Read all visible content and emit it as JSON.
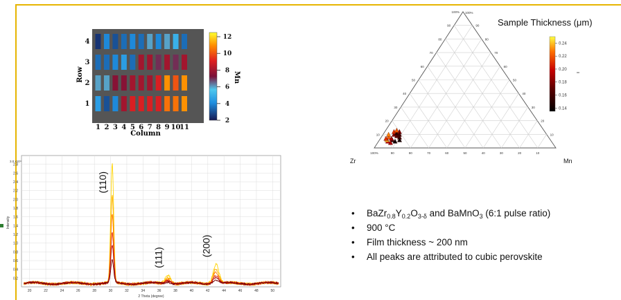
{
  "colors": {
    "frame": "#e6b400",
    "marker": "#2e7d32",
    "heatmap_bg": "#555555",
    "xrd_red": "#e03010",
    "xrd_yellow": "#ffd400"
  },
  "bullets": {
    "b1": {
      "f1": "BaZr",
      "s1": "0.8",
      "f2": "Y",
      "s2": "0.2",
      "f3": "O",
      "s3": "3-δ",
      "f4": " and BaMnO",
      "s4": "3",
      "f5": " (6:1 pulse ratio)"
    },
    "b2": "900 °C",
    "b3": "Film thickness ~ 200 nm",
    "b4": "All peaks are attributed to cubic perovskite"
  },
  "chart_data": [
    {
      "type": "heatmap",
      "xlabel": "Column",
      "ylabel": "Row",
      "colorbar_label": "Mn",
      "columns": [
        "1",
        "2",
        "3",
        "4",
        "5",
        "6",
        "7",
        "8",
        "9",
        "10",
        "11"
      ],
      "rows": [
        "4",
        "3",
        "2",
        "1"
      ],
      "colorbar_ticks": [
        "12",
        "10",
        "8",
        "6",
        "4",
        "2"
      ],
      "colorbar_range": [
        2,
        12.5
      ],
      "values": [
        [
          2.5,
          4,
          3,
          3.5,
          4,
          3.5,
          6,
          4,
          6,
          5,
          3.5
        ],
        [
          3.5,
          3.5,
          4,
          4.5,
          3.5,
          8,
          8,
          7,
          8,
          7,
          8
        ],
        [
          6,
          6,
          7.5,
          7.5,
          8,
          8,
          8,
          9,
          11,
          10,
          11
        ],
        [
          4.5,
          3,
          4,
          8,
          9,
          9,
          9,
          9,
          10.5,
          10.5,
          11
        ]
      ]
    },
    {
      "type": "line",
      "xlabel": "2 Theta (degree)",
      "ylabel": "Intensity",
      "y_top_label": "3.0 x10⁴",
      "xlim": [
        19,
        51
      ],
      "ylim": [
        0,
        30000
      ],
      "x_ticks": [
        "20",
        "22",
        "24",
        "26",
        "28",
        "30",
        "32",
        "34",
        "36",
        "38",
        "40",
        "42",
        "44",
        "46",
        "48",
        "50"
      ],
      "y_ticks": [
        "2.8",
        "2.6",
        "2.4",
        "2.2",
        "2.0",
        "1.8",
        "1.6",
        "1.4",
        "1.2",
        "1.0",
        "0.8",
        "0.6",
        "0.4",
        "0.2"
      ],
      "peaks": [
        {
          "label": "(110)",
          "x": 30.2,
          "y": 29500
        },
        {
          "label": "(111)",
          "x": 37.1,
          "y": 2800
        },
        {
          "label": "(200)",
          "x": 43.0,
          "y": 5600
        }
      ],
      "baseline": 800
    },
    {
      "type": "scatter",
      "title": "Sample Thickness (μm)",
      "vertex_labels": {
        "left": "Zr",
        "right": "Mn",
        "top": "100%"
      },
      "edge_ticks_left": [
        "100%",
        "90",
        "80",
        "70",
        "60",
        "50",
        "40",
        "30",
        "20",
        "10"
      ],
      "edge_ticks_right": [
        "10",
        "20",
        "30",
        "40",
        "50",
        "60",
        "70",
        "80",
        "90"
      ],
      "edge_ticks_bottom": [
        "100%",
        "90",
        "80",
        "70",
        "60",
        "50",
        "40",
        "30",
        "20",
        "10"
      ],
      "colorbar_ticks": [
        "0.24",
        "0.22",
        "0.20",
        "0.18",
        "0.16",
        "0.14"
      ],
      "colorbar_range": [
        0.135,
        0.25
      ],
      "points": [
        {
          "a": 0.04,
          "b": 0.08,
          "v": 0.22
        },
        {
          "a": 0.06,
          "b": 0.1,
          "v": 0.18
        },
        {
          "a": 0.07,
          "b": 0.06,
          "v": 0.15
        },
        {
          "a": 0.05,
          "b": 0.12,
          "v": 0.21
        },
        {
          "a": 0.08,
          "b": 0.09,
          "v": 0.17
        },
        {
          "a": 0.09,
          "b": 0.05,
          "v": 0.14
        },
        {
          "a": 0.03,
          "b": 0.1,
          "v": 0.23
        },
        {
          "a": 0.06,
          "b": 0.07,
          "v": 0.19
        },
        {
          "a": 0.1,
          "b": 0.08,
          "v": 0.16
        },
        {
          "a": 0.05,
          "b": 0.05,
          "v": 0.2
        },
        {
          "a": 0.07,
          "b": 0.11,
          "v": 0.15
        },
        {
          "a": 0.04,
          "b": 0.06,
          "v": 0.24
        },
        {
          "a": 0.08,
          "b": 0.12,
          "v": 0.18
        },
        {
          "a": 0.11,
          "b": 0.06,
          "v": 0.14
        },
        {
          "a": 0.06,
          "b": 0.13,
          "v": 0.22
        },
        {
          "a": 0.09,
          "b": 0.1,
          "v": 0.16
        },
        {
          "a": 0.03,
          "b": 0.07,
          "v": 0.21
        },
        {
          "a": 0.07,
          "b": 0.04,
          "v": 0.19
        }
      ]
    }
  ]
}
